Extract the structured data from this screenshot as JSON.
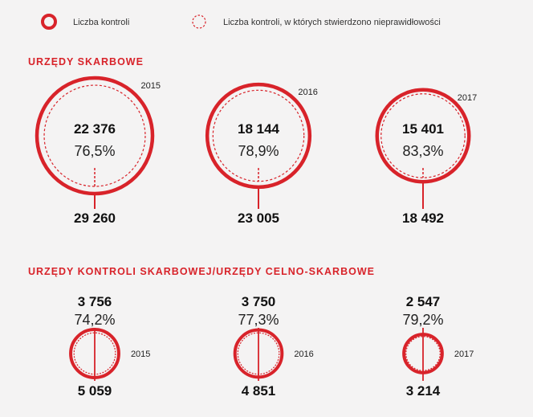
{
  "legend": {
    "solid_label": "Liczba kontroli",
    "dashed_label": "Liczba kontroli, w których stwierdzono nieprawidłowości"
  },
  "colors": {
    "accent": "#d8232a",
    "background": "#f4f3f3"
  },
  "chart_data": [
    {
      "type": "bubble",
      "title": "URZĘDY SKARBOWE",
      "series": [
        {
          "name": "Liczba kontroli",
          "x": [
            "2015",
            "2016",
            "2017"
          ],
          "values": [
            29260,
            23005,
            18492
          ],
          "labels": [
            "29 260",
            "23 005",
            "18 492"
          ]
        },
        {
          "name": "Liczba kontroli, w których stwierdzono nieprawidłowości",
          "x": [
            "2015",
            "2016",
            "2017"
          ],
          "values": [
            22376,
            18144,
            15401
          ],
          "labels": [
            "22 376",
            "18 144",
            "15 401"
          ],
          "percent_labels": [
            "76,5%",
            "78,9%",
            "83,3%"
          ]
        }
      ]
    },
    {
      "type": "bubble",
      "title": "URZĘDY KONTROLI SKARBOWEJ/URZĘDY CELNO-SKARBOWE",
      "series": [
        {
          "name": "Liczba kontroli",
          "x": [
            "2015",
            "2016",
            "2017"
          ],
          "values": [
            5059,
            4851,
            3214
          ],
          "labels": [
            "5 059",
            "4 851",
            "3 214"
          ]
        },
        {
          "name": "Liczba kontroli, w których stwierdzono nieprawidłowości",
          "x": [
            "2015",
            "2016",
            "2017"
          ],
          "values": [
            3756,
            3750,
            2547
          ],
          "labels": [
            "3 756",
            "3 750",
            "2 547"
          ],
          "percent_labels": [
            "74,2%",
            "77,3%",
            "79,2%"
          ]
        }
      ]
    }
  ]
}
